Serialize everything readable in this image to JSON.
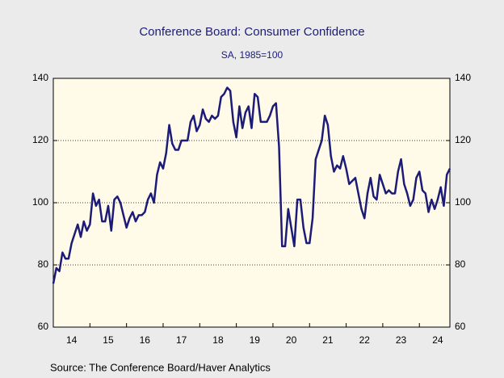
{
  "chart_data": {
    "type": "line",
    "title": "Conference Board: Consumer Confidence",
    "subtitle": "SA, 1985=100",
    "source": "Source:  The Conference Board/Haver Analytics",
    "categories": [
      null,
      null,
      null,
      null,
      null,
      null,
      "14",
      null,
      null,
      null,
      null,
      null,
      null,
      null,
      null,
      null,
      null,
      null,
      "15",
      null,
      null,
      null,
      null,
      null,
      null,
      null,
      null,
      null,
      null,
      null,
      "16",
      null,
      null,
      null,
      null,
      null,
      null,
      null,
      null,
      null,
      null,
      null,
      "17",
      null,
      null,
      null,
      null,
      null,
      null,
      null,
      null,
      null,
      null,
      null,
      "18",
      null,
      null,
      null,
      null,
      null,
      null,
      null,
      null,
      null,
      null,
      null,
      "19",
      null,
      null,
      null,
      null,
      null,
      null,
      null,
      null,
      null,
      null,
      null,
      "20",
      null,
      null,
      null,
      null,
      null,
      null,
      null,
      null,
      null,
      null,
      null,
      "21",
      null,
      null,
      null,
      null,
      null,
      null,
      null,
      null,
      null,
      null,
      null,
      "22",
      null,
      null,
      null,
      null,
      null,
      null,
      null,
      null,
      null,
      null,
      null,
      "23",
      null,
      null,
      null,
      null,
      null,
      null,
      null,
      null,
      null,
      null,
      null,
      "24",
      null,
      null,
      null,
      null
    ],
    "series": [
      {
        "name": "Consumer Confidence",
        "color": "#1c1c78",
        "values": [
          74,
          79,
          78,
          84,
          82,
          82,
          87,
          90,
          93,
          89,
          94,
          91,
          93,
          103,
          99,
          101,
          94,
          94,
          99,
          91,
          101,
          102,
          100,
          96,
          92,
          95,
          97,
          94,
          96,
          96,
          97,
          101,
          103,
          100,
          109,
          113,
          111,
          116,
          125,
          119,
          117,
          117,
          120,
          120,
          120,
          126,
          128,
          123,
          125,
          130,
          127,
          126,
          128,
          127,
          128,
          134,
          135,
          137,
          136,
          126,
          121,
          131,
          124,
          129,
          131,
          124,
          135,
          134,
          126,
          126,
          126,
          128,
          131,
          132,
          118,
          86,
          86,
          98,
          92,
          86,
          101,
          101,
          92,
          87,
          87,
          95,
          114,
          117,
          120,
          128,
          125,
          115,
          110,
          112,
          111,
          115,
          111,
          106,
          107,
          108,
          103,
          98,
          95,
          103,
          108,
          102,
          101,
          109,
          106,
          103,
          104,
          103,
          103,
          110,
          114,
          106,
          103,
          99,
          101,
          108,
          110,
          104,
          103,
          97,
          101,
          98,
          101,
          105,
          99,
          109,
          111
        ]
      }
    ],
    "ylim": [
      60,
      140
    ],
    "yticks": [
      60,
      80,
      100,
      120,
      140
    ],
    "y2lim": [
      60,
      140
    ],
    "y2ticks": [
      60,
      80,
      100,
      120,
      140
    ],
    "grid": true
  }
}
